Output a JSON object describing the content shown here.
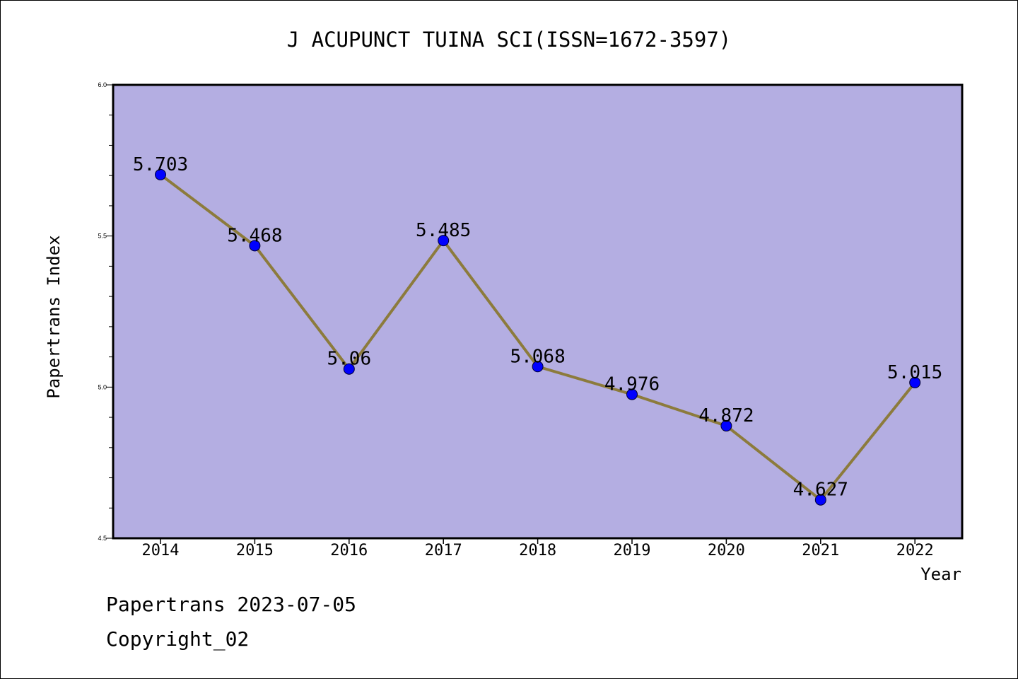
{
  "colors": {
    "plot_background": "#b4aee2",
    "line": "#8c7b3c",
    "marker": "#0000ff",
    "frame": "#000000"
  },
  "chart_data": {
    "type": "line",
    "title": "J ACUPUNCT TUINA SCI(ISSN=1672-3597)",
    "xlabel": "Year",
    "ylabel": "Papertrans Index",
    "categories": [
      "2014",
      "2015",
      "2016",
      "2017",
      "2018",
      "2019",
      "2020",
      "2021",
      "2022"
    ],
    "series": [
      {
        "values": [
          5.703,
          5.468,
          5.06,
          5.485,
          5.068,
          4.976,
          4.872,
          4.627,
          5.015
        ],
        "labels": [
          "5.703",
          "5.468",
          "5.06",
          "5.485",
          "5.068",
          "4.976",
          "4.872",
          "4.627",
          "5.015"
        ]
      }
    ],
    "ylim": [
      4.5,
      6.0
    ],
    "yticks": [
      "4.5",
      "5.0",
      "5.5",
      "6.0"
    ],
    "grid": false,
    "legend": "none"
  },
  "footer": {
    "line1": "Papertrans 2023-07-05",
    "line2": "Copyright_02"
  }
}
